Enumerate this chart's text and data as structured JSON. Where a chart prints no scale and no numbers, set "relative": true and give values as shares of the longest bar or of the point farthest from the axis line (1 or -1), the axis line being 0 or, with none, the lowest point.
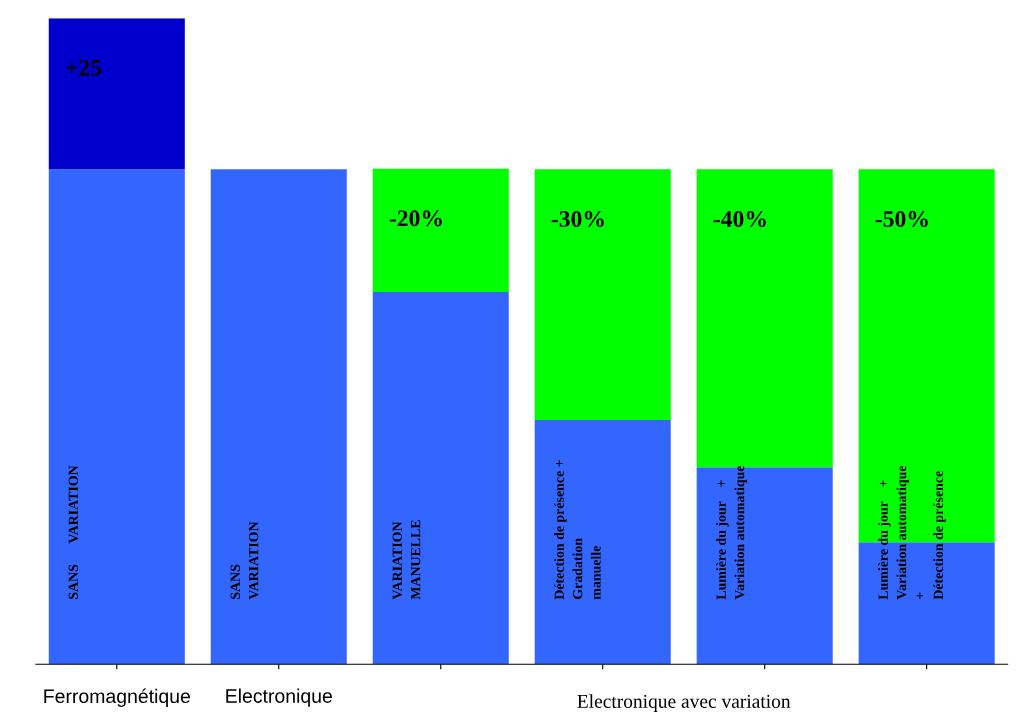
{
  "chart_data": {
    "type": "bar",
    "relative": true,
    "stacked": true,
    "categories": [
      "Ferromagnétique",
      "Electronique",
      null,
      null,
      null,
      null
    ],
    "series": [
      {
        "color": "#3366ff",
        "values": [
          0.766,
          0.766,
          0.576,
          0.378,
          0.305,
          0.189
        ]
      },
      {
        "color": "#00ff00",
        "colors": [
          "#0000cc",
          null,
          "#00ff00",
          "#00ff00",
          "#00ff00",
          "#00ff00"
        ],
        "values": [
          0.234,
          null,
          0.191,
          0.388,
          0.461,
          0.577
        ]
      }
    ],
    "annotations": [
      "SANS      VARIATION",
      "SANS\nVARIATION",
      "VARIATION\nMANUELLE",
      "Détection de présence +\nGradation\nmanuelle",
      "Lumière du jour    +\nVariation automatique",
      "Lumière du jour    +\nVariation automatique\n+\nDétection de présence",
      "Electronique avec variation",
      "+25",
      "-20%",
      "-30%",
      "-40%",
      "-50%"
    ]
  }
}
